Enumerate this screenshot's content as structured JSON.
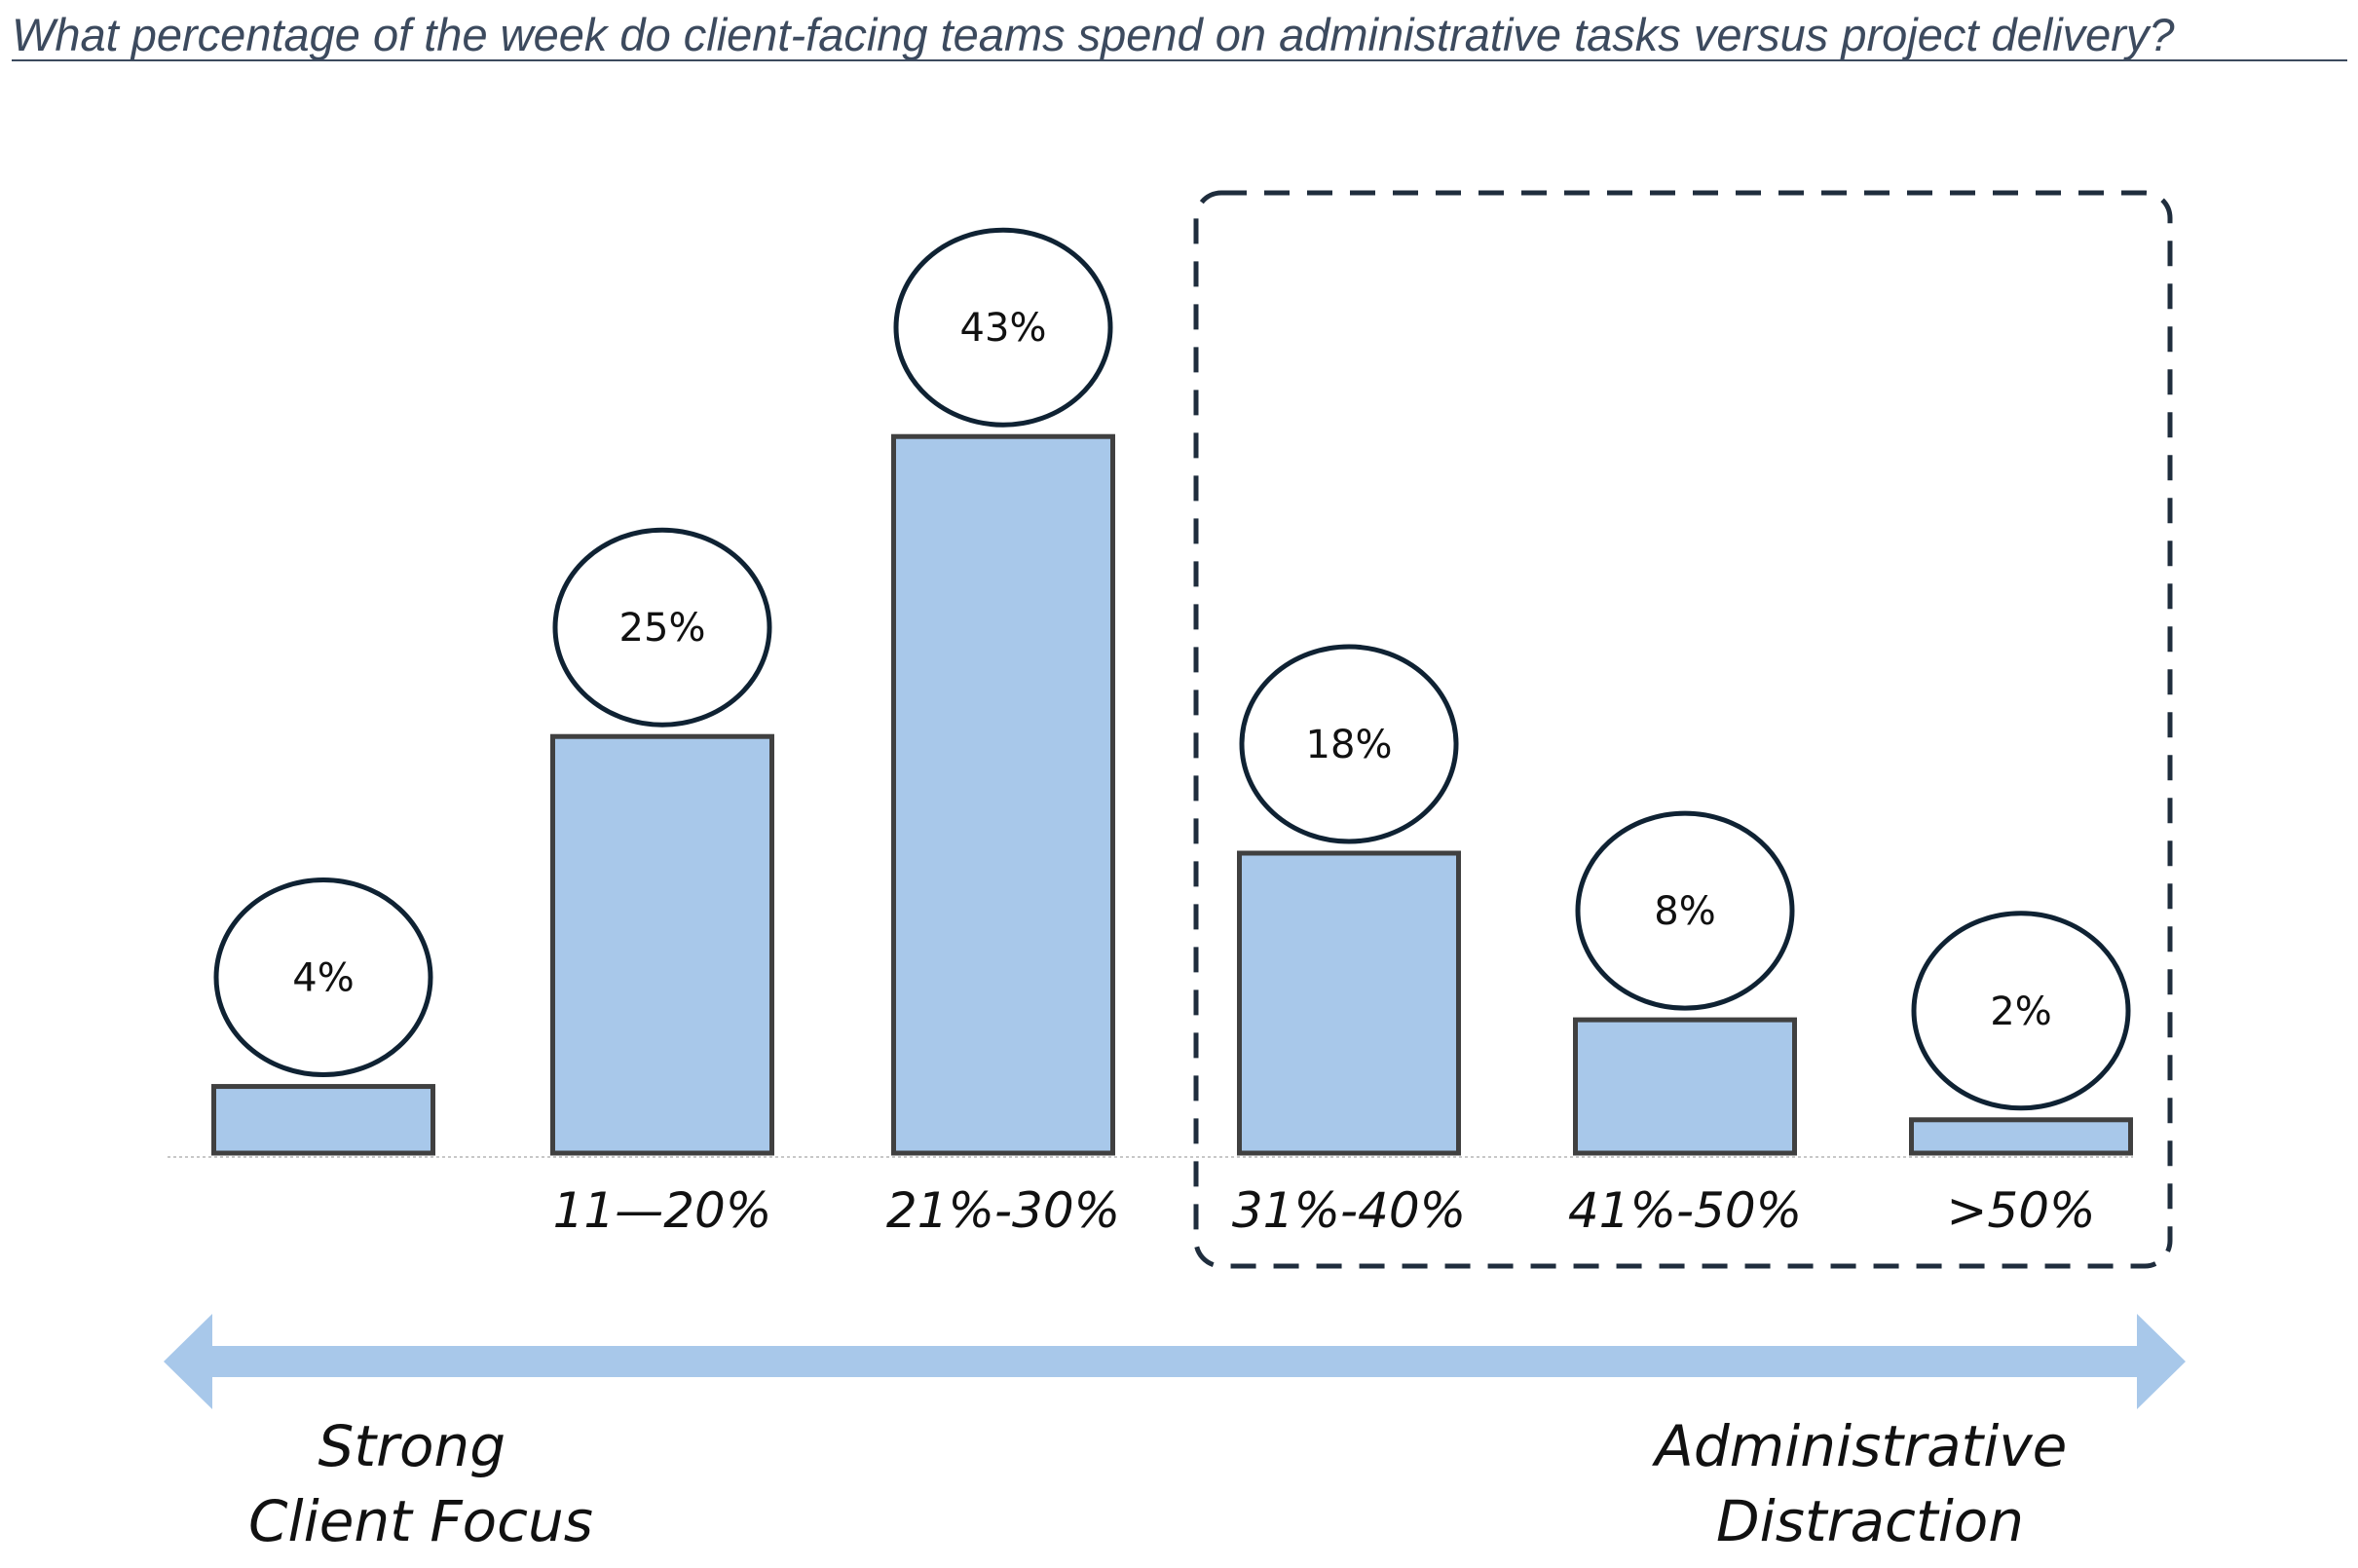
{
  "chart_data": {
    "type": "bar",
    "title": "What percentage of the week do client-facing teams spend on administrative tasks versus project delivery?",
    "categories": [
      "",
      "11—20%",
      "21%-30%",
      "31%-40%",
      "41%-50%",
      ">50%"
    ],
    "values": [
      4,
      25,
      43,
      18,
      8,
      2
    ],
    "value_labels": [
      "4%",
      "25%",
      "43%",
      "18%",
      "8%",
      "2%"
    ],
    "value_unit": "%",
    "highlighted_categories": [
      "31%-40%",
      "41%-50%",
      ">50%"
    ],
    "ylim": [
      0,
      45
    ],
    "grid": false,
    "legend": "none",
    "axis_arrow": {
      "left_label": [
        "Strong",
        "Client Focus"
      ],
      "right_label": [
        "Administrative",
        "Distraction"
      ]
    },
    "colors": {
      "bar_fill": "#a8c8ea",
      "bar_stroke": "#404040",
      "bubble_stroke": "#0f2233",
      "highlight_box": "#1f2d3d",
      "arrow": "#a8c8ea",
      "title": "#3c4a5e"
    }
  }
}
